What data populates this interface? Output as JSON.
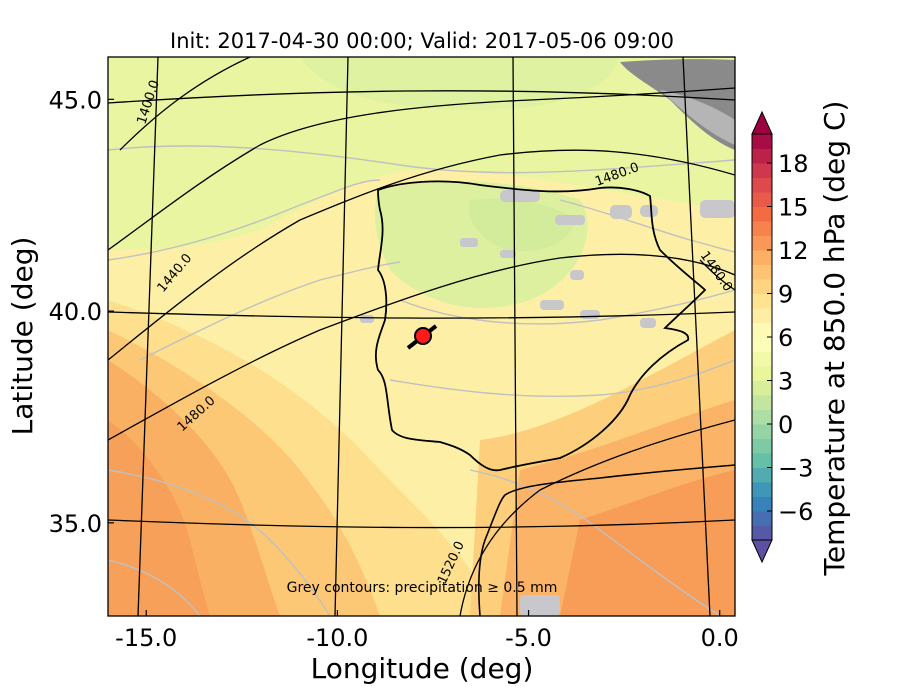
{
  "chart_data": {
    "type": "contour-map",
    "title": "Init: 2017-04-30 00:00; Valid: 2017-05-06 09:00",
    "xlabel": "Longitude (deg)",
    "ylabel": "Latitude (deg)",
    "xlim": [
      -16.0,
      0.4
    ],
    "ylim": [
      32.8,
      46.0
    ],
    "x_ticks": [
      -15.0,
      -10.0,
      -5.0,
      0.0
    ],
    "x_tick_labels": [
      "-15.0",
      "-10.0",
      "-5.0",
      "0.0"
    ],
    "y_ticks": [
      35.0,
      40.0,
      45.0
    ],
    "y_tick_labels": [
      "35.0",
      "40.0",
      "45.0"
    ],
    "annotation": "Grey contours: precipitation ≥ 0.5 mm",
    "colorbar": {
      "label": "Temperature at 850.0 hPa (deg C)",
      "min": -8,
      "max": 20,
      "step": 1,
      "extend": "both",
      "ticks": [
        -6,
        -3,
        0,
        3,
        6,
        9,
        12,
        15,
        18
      ],
      "tick_labels": [
        "−6",
        "−3",
        "0",
        "3",
        "6",
        "9",
        "12",
        "15",
        "18"
      ],
      "colormap": "Spectral_r"
    },
    "geopotential_contours": [
      {
        "label": "1400.0",
        "level": 1400
      },
      {
        "label": "1440.0",
        "level": 1440
      },
      {
        "label": "1480.0",
        "level": 1480
      },
      {
        "label": "1480.0",
        "level": 1480
      },
      {
        "label": "1480.0",
        "level": 1480
      },
      {
        "label": "1520.0",
        "level": 1520
      }
    ],
    "marker": {
      "lon": -7.6,
      "lat": 39.35
    }
  }
}
